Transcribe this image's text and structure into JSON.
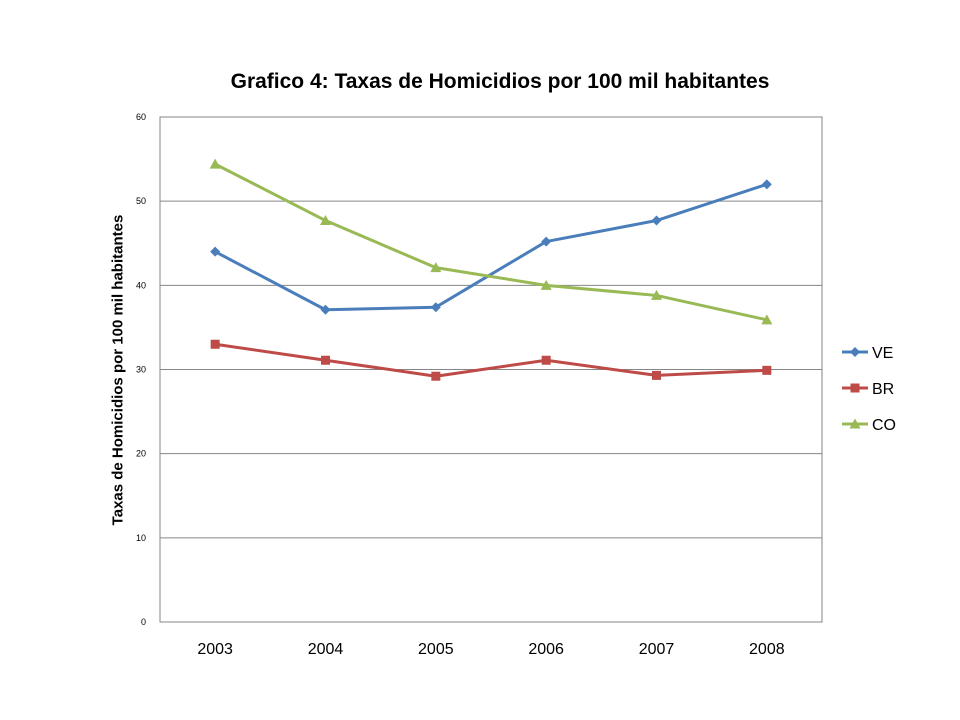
{
  "chart_data": {
    "type": "line",
    "title": "Grafico 4: Taxas de Homicidios por 100 mil habitantes",
    "ylabel": "Taxas de Homicidios  por 100 mil habitantes",
    "xlabel": "",
    "categories": [
      "2003",
      "2004",
      "2005",
      "2006",
      "2007",
      "2008"
    ],
    "ylim": [
      0,
      60
    ],
    "yticks": [
      "0",
      "10",
      "20",
      "30",
      "40",
      "50",
      "60"
    ],
    "grid": true,
    "legend_position": "right",
    "series": [
      {
        "name": "VE",
        "color": "#4a7ebb",
        "marker": "diamond",
        "values": [
          44.0,
          37.1,
          37.4,
          45.2,
          47.7,
          52.0
        ]
      },
      {
        "name": "BR",
        "color": "#be4b48",
        "marker": "square",
        "values": [
          33.0,
          31.1,
          29.2,
          31.1,
          29.3,
          29.9
        ]
      },
      {
        "name": "CO",
        "color": "#98b954",
        "marker": "triangle",
        "values": [
          54.4,
          47.7,
          42.1,
          40.0,
          38.8,
          35.9
        ]
      }
    ]
  }
}
